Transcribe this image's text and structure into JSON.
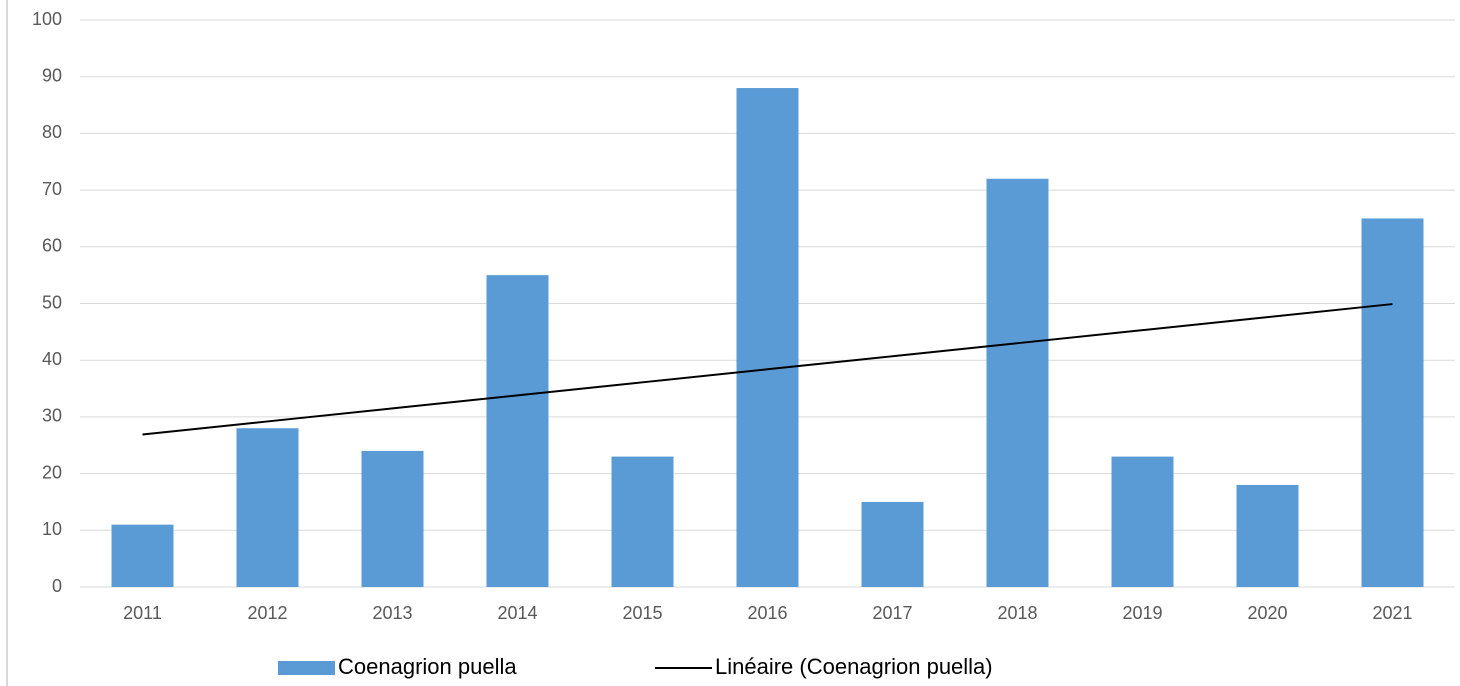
{
  "chart_data": {
    "type": "bar",
    "categories": [
      "2011",
      "2012",
      "2013",
      "2014",
      "2015",
      "2016",
      "2017",
      "2018",
      "2019",
      "2020",
      "2021"
    ],
    "series": [
      {
        "name": "Coenagrion puella",
        "color": "#5b9bd5",
        "type": "bar",
        "values": [
          11,
          28,
          24,
          55,
          23,
          88,
          15,
          72,
          23,
          18,
          65
        ]
      },
      {
        "name": "Linéaire (Coenagrion puella)",
        "color": "#000000",
        "type": "line",
        "values": [
          26.9,
          29.2,
          31.5,
          33.8,
          36.1,
          38.4,
          40.7,
          43.0,
          45.3,
          47.6,
          49.9
        ]
      }
    ],
    "ylim": [
      0,
      100
    ],
    "yticks": [
      0,
      10,
      20,
      30,
      40,
      50,
      60,
      70,
      80,
      90,
      100
    ],
    "grid": true,
    "legend": "bottom"
  }
}
